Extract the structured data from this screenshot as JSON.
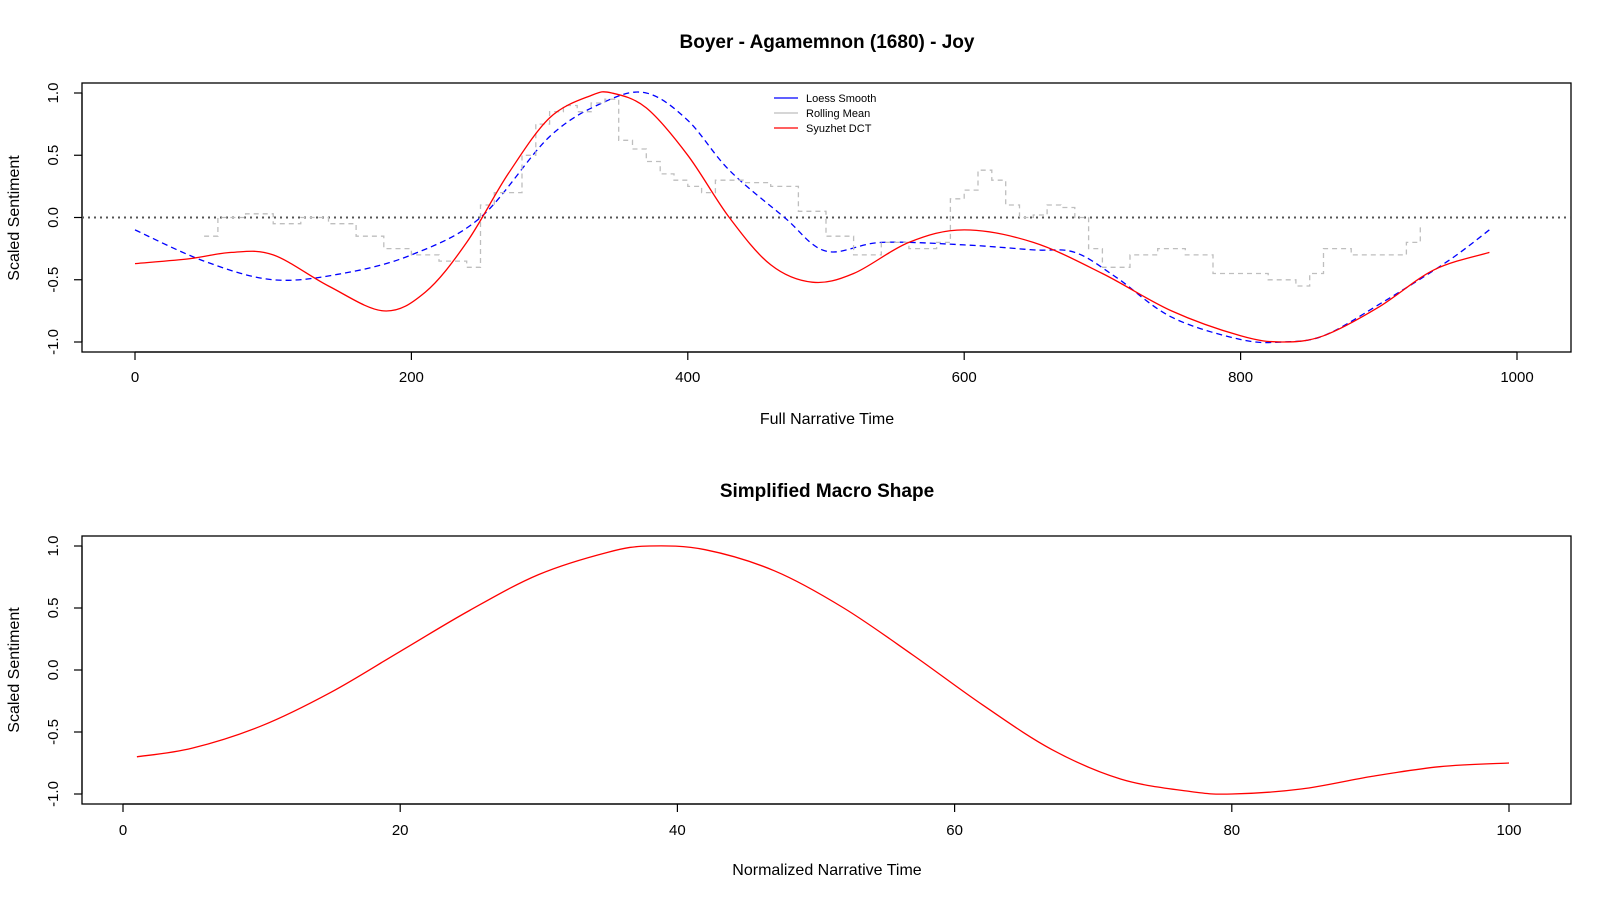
{
  "chart_data": [
    {
      "type": "line",
      "title": "Boyer - Agamemnon (1680) - Joy",
      "xlabel": "Full Narrative Time",
      "ylabel": "Scaled Sentiment",
      "xlim": [
        0,
        1000
      ],
      "ylim": [
        -1.0,
        1.0
      ],
      "x_ticks": [
        0,
        200,
        400,
        600,
        800,
        1000
      ],
      "x_tick_labels": [
        "0",
        "200",
        "400",
        "600",
        "800",
        "1000"
      ],
      "y_ticks": [
        -1.0,
        -0.5,
        0.0,
        0.5,
        1.0
      ],
      "y_tick_labels": [
        "-1.0",
        "-0.5",
        "0.0",
        "0.5",
        "1.0"
      ],
      "reference_line_y": 0,
      "legend_position": "top-center",
      "legend": [
        "Loess Smooth",
        "Rolling Mean",
        "Syuzhet DCT"
      ],
      "series": [
        {
          "name": "Loess Smooth",
          "color": "#0000ff",
          "style": "dashed",
          "x": [
            0,
            50,
            100,
            150,
            200,
            250,
            300,
            340,
            370,
            400,
            430,
            470,
            500,
            540,
            600,
            650,
            680,
            710,
            750,
            800,
            830,
            860,
            900,
            950,
            980
          ],
          "y": [
            -0.1,
            -0.35,
            -0.5,
            -0.45,
            -0.3,
            0.0,
            0.65,
            0.93,
            1.0,
            0.78,
            0.38,
            0.0,
            -0.27,
            -0.2,
            -0.22,
            -0.26,
            -0.28,
            -0.48,
            -0.8,
            -0.98,
            -1.0,
            -0.95,
            -0.7,
            -0.35,
            -0.1
          ]
        },
        {
          "name": "Rolling Mean",
          "color": "#bebebe",
          "style": "dashed",
          "x": [
            50,
            60,
            80,
            100,
            120,
            140,
            160,
            180,
            200,
            220,
            240,
            250,
            260,
            270,
            280,
            290,
            300,
            310,
            320,
            330,
            340,
            350,
            360,
            370,
            380,
            390,
            400,
            410,
            420,
            430,
            440,
            460,
            480,
            500,
            520,
            540,
            560,
            580,
            590,
            600,
            610,
            620,
            630,
            640,
            650,
            660,
            670,
            680,
            690,
            700,
            720,
            740,
            760,
            780,
            800,
            820,
            840,
            850,
            860,
            880,
            900,
            920,
            930
          ],
          "y": [
            -0.15,
            0.0,
            0.03,
            -0.05,
            0.0,
            -0.05,
            -0.15,
            -0.25,
            -0.3,
            -0.35,
            -0.4,
            0.1,
            0.2,
            0.2,
            0.5,
            0.75,
            0.85,
            0.9,
            0.85,
            0.92,
            0.95,
            0.62,
            0.55,
            0.45,
            0.35,
            0.3,
            0.25,
            0.2,
            0.3,
            0.3,
            0.28,
            0.25,
            0.05,
            -0.15,
            -0.3,
            -0.2,
            -0.25,
            -0.2,
            0.15,
            0.22,
            0.38,
            0.3,
            0.1,
            0.0,
            0.02,
            0.1,
            0.08,
            0.0,
            -0.25,
            -0.4,
            -0.3,
            -0.25,
            -0.3,
            -0.45,
            -0.45,
            -0.5,
            -0.55,
            -0.45,
            -0.25,
            -0.3,
            -0.3,
            -0.2,
            -0.05
          ]
        },
        {
          "name": "Syuzhet DCT",
          "color": "#ff0000",
          "style": "solid",
          "x": [
            0,
            40,
            70,
            100,
            140,
            180,
            210,
            240,
            270,
            300,
            330,
            345,
            370,
            400,
            430,
            460,
            490,
            520,
            560,
            600,
            650,
            700,
            750,
            800,
            830,
            860,
            900,
            940,
            980
          ],
          "y": [
            -0.37,
            -0.33,
            -0.28,
            -0.3,
            -0.55,
            -0.75,
            -0.6,
            -0.2,
            0.35,
            0.8,
            0.98,
            1.0,
            0.88,
            0.5,
            0.0,
            -0.38,
            -0.52,
            -0.45,
            -0.2,
            -0.1,
            -0.2,
            -0.45,
            -0.75,
            -0.95,
            -1.0,
            -0.95,
            -0.72,
            -0.42,
            -0.28
          ]
        }
      ]
    },
    {
      "type": "line",
      "title": "Simplified Macro Shape",
      "xlabel": "Normalized Narrative Time",
      "ylabel": "Scaled Sentiment",
      "xlim": [
        0,
        100
      ],
      "ylim": [
        -1.0,
        1.0
      ],
      "x_ticks": [
        0,
        20,
        40,
        60,
        80,
        100
      ],
      "x_tick_labels": [
        "0",
        "20",
        "40",
        "60",
        "80",
        "100"
      ],
      "y_ticks": [
        -1.0,
        -0.5,
        0.0,
        0.5,
        1.0
      ],
      "y_tick_labels": [
        "-1.0",
        "-0.5",
        "0.0",
        "0.5",
        "1.0"
      ],
      "series": [
        {
          "name": "Macro Shape",
          "color": "#ff0000",
          "style": "solid",
          "x": [
            1,
            5,
            10,
            15,
            20,
            25,
            30,
            35,
            38,
            42,
            47,
            52,
            57,
            62,
            67,
            72,
            77,
            80,
            85,
            90,
            95,
            100
          ],
          "y": [
            -0.7,
            -0.63,
            -0.45,
            -0.18,
            0.15,
            0.48,
            0.77,
            0.95,
            1.0,
            0.97,
            0.8,
            0.5,
            0.12,
            -0.28,
            -0.64,
            -0.88,
            -0.98,
            -1.0,
            -0.96,
            -0.86,
            -0.78,
            -0.75
          ]
        }
      ]
    }
  ]
}
